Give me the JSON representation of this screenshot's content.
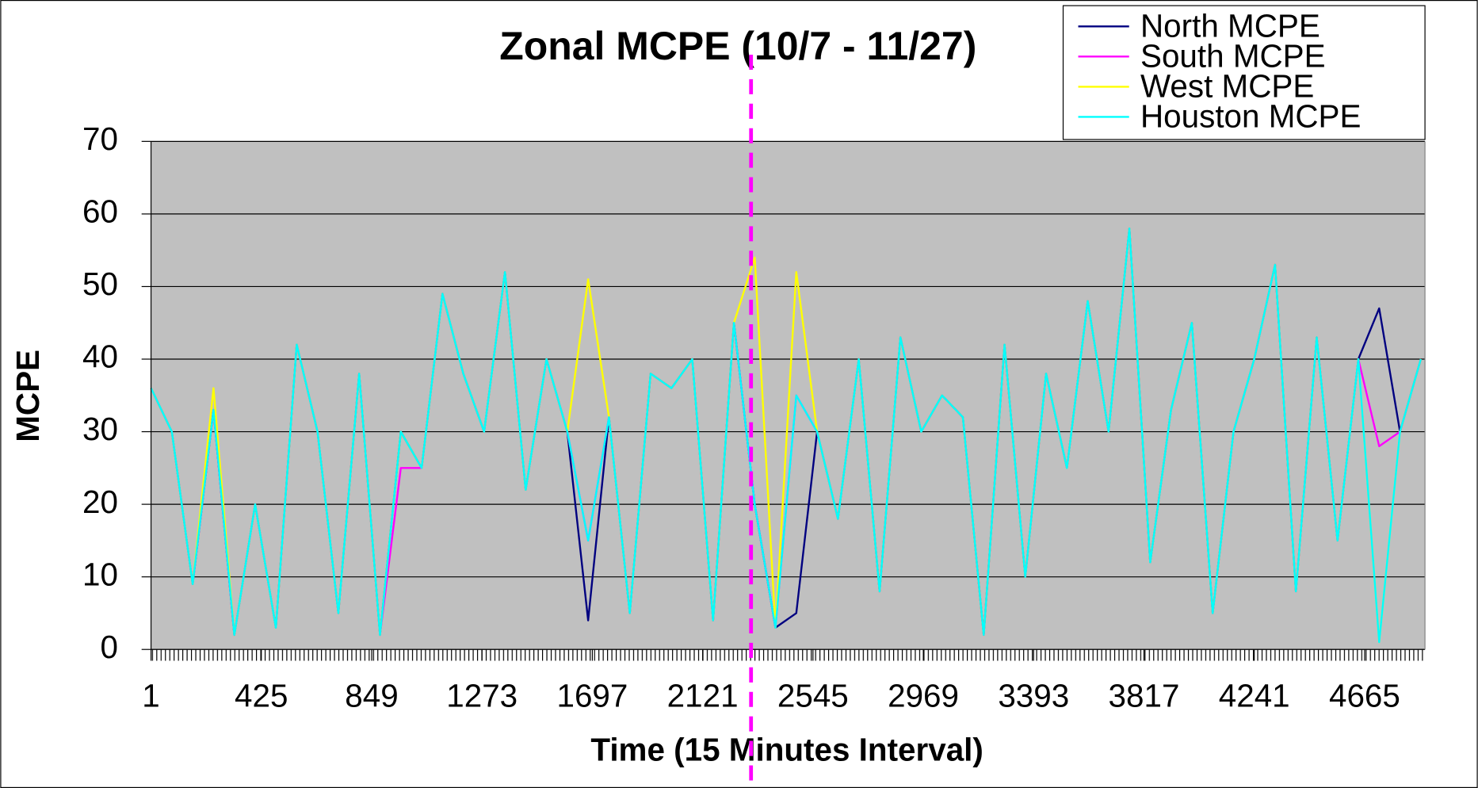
{
  "chart_data": {
    "type": "line",
    "title": "Zonal MCPE (10/7 - 11/27)",
    "xlabel": "Time (15 Minutes Interval)",
    "ylabel": "MCPE",
    "xlim": [
      1,
      4897
    ],
    "ylim": [
      0,
      70
    ],
    "xticks": [
      1,
      425,
      849,
      1273,
      1697,
      2121,
      2545,
      2969,
      3393,
      3817,
      4241,
      4665
    ],
    "yticks": [
      0,
      10,
      20,
      30,
      40,
      50,
      60,
      70
    ],
    "grid": true,
    "background": "#c0c0c0",
    "legend": "upper right",
    "vline": {
      "x": 2307,
      "color": "#ff00ff"
    },
    "x": [
      1,
      81,
      161,
      241,
      321,
      401,
      481,
      561,
      641,
      721,
      801,
      881,
      961,
      1041,
      1121,
      1201,
      1281,
      1361,
      1441,
      1521,
      1601,
      1681,
      1761,
      1841,
      1921,
      2001,
      2081,
      2161,
      2241,
      2321,
      2401,
      2481,
      2561,
      2641,
      2721,
      2801,
      2881,
      2961,
      3041,
      3121,
      3201,
      3281,
      3361,
      3441,
      3521,
      3601,
      3681,
      3761,
      3841,
      3921,
      4001,
      4081,
      4161,
      4241,
      4321,
      4401,
      4481,
      4561,
      4641,
      4721,
      4801,
      4881
    ],
    "series": [
      {
        "name": "North MCPE",
        "color": "#000080",
        "values": [
          36,
          30,
          9,
          33,
          2,
          20,
          3,
          42,
          30,
          5,
          38,
          2,
          30,
          25,
          49,
          38,
          30,
          52,
          22,
          40,
          30,
          4,
          32,
          5,
          38,
          36,
          40,
          4,
          45,
          20,
          3,
          5,
          30,
          18,
          40,
          8,
          43,
          30,
          35,
          32,
          2,
          42,
          10,
          38,
          25,
          48,
          30,
          58,
          12,
          33,
          45,
          5,
          30,
          40,
          53,
          8,
          43,
          15,
          40,
          47,
          30,
          40
        ]
      },
      {
        "name": "South MCPE",
        "color": "#ff00ff",
        "values": [
          36,
          30,
          9,
          33,
          2,
          20,
          3,
          42,
          30,
          5,
          38,
          2,
          25,
          25,
          49,
          38,
          30,
          52,
          22,
          40,
          30,
          15,
          32,
          5,
          38,
          36,
          40,
          4,
          45,
          20,
          3,
          35,
          30,
          18,
          40,
          8,
          43,
          30,
          35,
          32,
          2,
          42,
          10,
          38,
          25,
          48,
          30,
          58,
          12,
          33,
          45,
          5,
          30,
          40,
          53,
          8,
          43,
          15,
          40,
          28,
          30,
          40
        ]
      },
      {
        "name": "West MCPE",
        "color": "#ffff00",
        "values": [
          36,
          30,
          9,
          36,
          2,
          20,
          3,
          42,
          30,
          5,
          38,
          2,
          30,
          25,
          49,
          38,
          30,
          52,
          22,
          40,
          30,
          51,
          32,
          5,
          38,
          36,
          40,
          4,
          45,
          54,
          3,
          52,
          30,
          18,
          40,
          8,
          43,
          30,
          35,
          32,
          2,
          42,
          10,
          38,
          25,
          48,
          30,
          58,
          12,
          33,
          45,
          5,
          30,
          40,
          53,
          8,
          43,
          15,
          40,
          1,
          30,
          40
        ]
      },
      {
        "name": "Houston MCPE",
        "color": "#00ffff",
        "values": [
          36,
          30,
          9,
          33,
          2,
          20,
          3,
          42,
          30,
          5,
          38,
          2,
          30,
          25,
          49,
          38,
          30,
          52,
          22,
          40,
          30,
          15,
          32,
          5,
          38,
          36,
          40,
          4,
          45,
          20,
          3,
          35,
          30,
          18,
          40,
          8,
          43,
          30,
          35,
          32,
          2,
          42,
          10,
          38,
          25,
          48,
          30,
          58,
          12,
          33,
          45,
          5,
          30,
          40,
          53,
          8,
          43,
          15,
          40,
          1,
          30,
          40
        ]
      }
    ]
  }
}
